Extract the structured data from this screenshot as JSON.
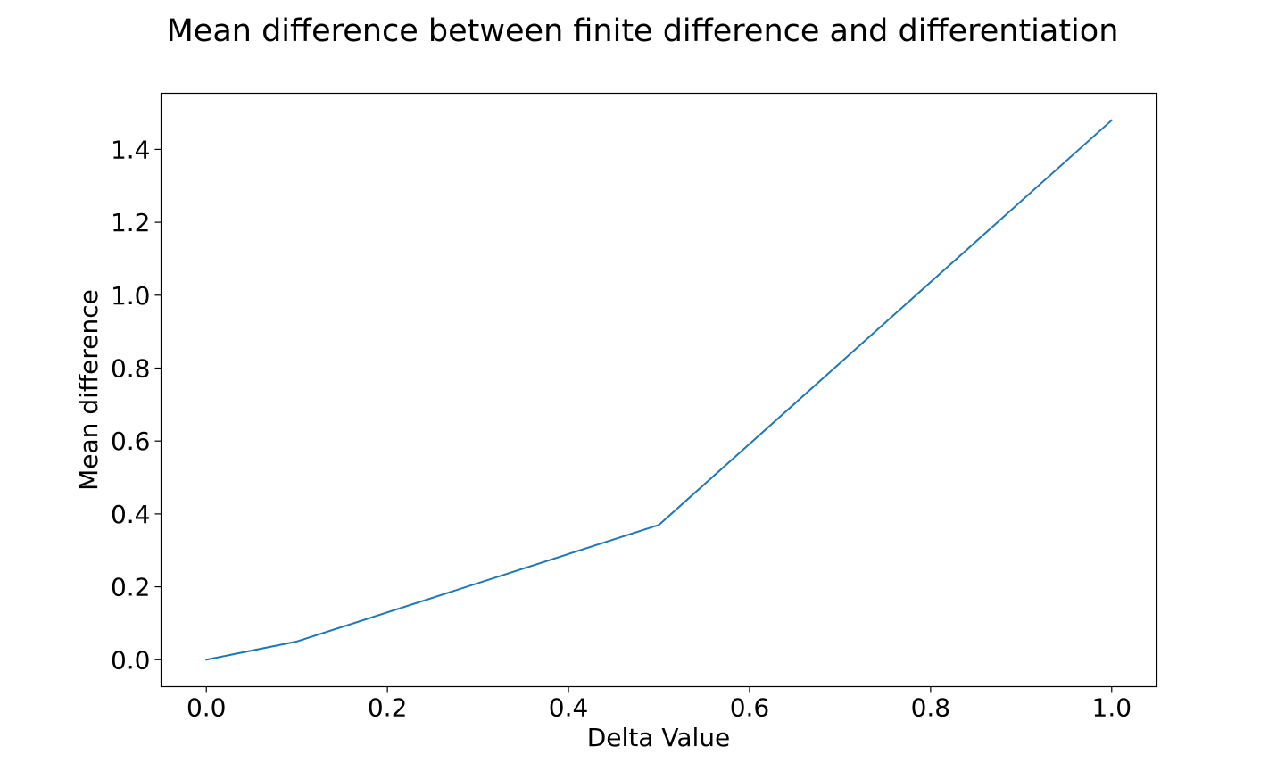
{
  "chart_data": {
    "type": "line",
    "title": "Mean difference between finite difference and differentiation",
    "xlabel": "Delta Value",
    "ylabel": "Mean difference",
    "xlim": [
      -0.05,
      1.05
    ],
    "ylim": [
      -0.074,
      1.554
    ],
    "xticks": [
      0.0,
      0.2,
      0.4,
      0.6,
      0.8,
      1.0
    ],
    "xtick_labels": [
      "0.0",
      "0.2",
      "0.4",
      "0.6",
      "0.8",
      "1.0"
    ],
    "yticks": [
      0.0,
      0.2,
      0.4,
      0.6,
      0.8,
      1.0,
      1.2,
      1.4
    ],
    "ytick_labels": [
      "0.0",
      "0.2",
      "0.4",
      "0.6",
      "0.8",
      "1.0",
      "1.2",
      "1.4"
    ],
    "grid": false,
    "legend": "none",
    "series": [
      {
        "color": "#1f77b4",
        "x": [
          0.0,
          0.1,
          0.5,
          1.0
        ],
        "y": [
          0.0,
          0.05,
          0.37,
          1.48
        ]
      }
    ]
  }
}
